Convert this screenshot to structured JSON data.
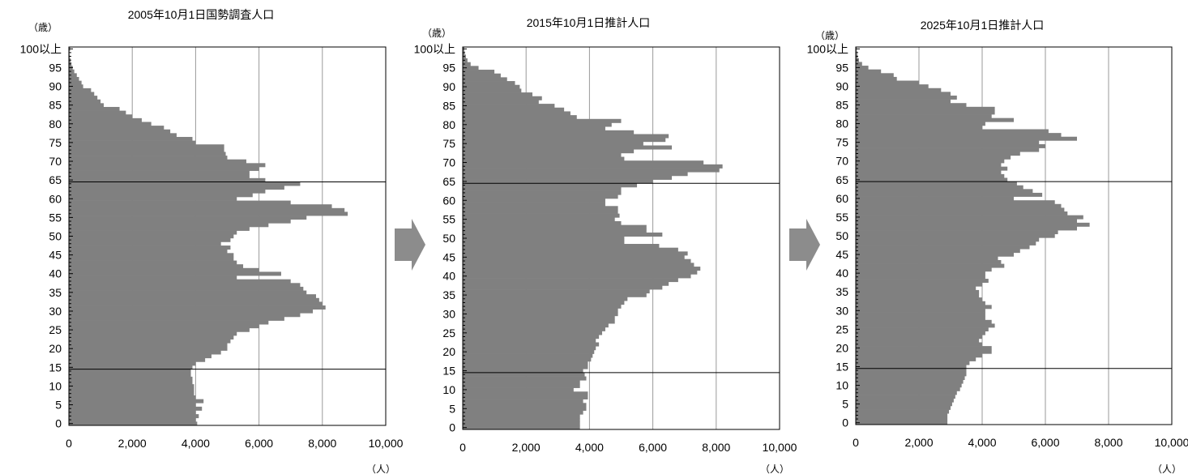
{
  "chart_data": [
    {
      "type": "bar",
      "orientation": "horizontal",
      "title": "2005年10月1日国勢調査人口",
      "y_unit_label": "（歳）",
      "x_unit_label": "（人）",
      "xlim": [
        0,
        10000
      ],
      "ylim": [
        0,
        100
      ],
      "x_ticks": [
        "0",
        "2,000",
        "4,000",
        "6,000",
        "8,000",
        "10,000"
      ],
      "y_ticks": [
        "0",
        "5",
        "10",
        "15",
        "20",
        "25",
        "30",
        "35",
        "40",
        "45",
        "50",
        "55",
        "60",
        "65",
        "70",
        "75",
        "80",
        "85",
        "90",
        "95",
        "100以上"
      ],
      "reference_lines_age": [
        15,
        65
      ],
      "grid": true,
      "bar_color": "#808080",
      "categories": [
        "0",
        "1",
        "2",
        "3",
        "4",
        "5",
        "6",
        "7",
        "8",
        "9",
        "10",
        "11",
        "12",
        "13",
        "14",
        "15",
        "16",
        "17",
        "18",
        "19",
        "20",
        "21",
        "22",
        "23",
        "24",
        "25",
        "26",
        "27",
        "28",
        "29",
        "30",
        "31",
        "32",
        "33",
        "34",
        "35",
        "36",
        "37",
        "38",
        "39",
        "40",
        "41",
        "42",
        "43",
        "44",
        "45",
        "46",
        "47",
        "48",
        "49",
        "50",
        "51",
        "52",
        "53",
        "54",
        "55",
        "56",
        "57",
        "58",
        "59",
        "60",
        "61",
        "62",
        "63",
        "64",
        "65",
        "66",
        "67",
        "68",
        "69",
        "70",
        "71",
        "72",
        "73",
        "74",
        "75",
        "76",
        "77",
        "78",
        "79",
        "80",
        "81",
        "82",
        "83",
        "84",
        "85",
        "86",
        "87",
        "88",
        "89",
        "90",
        "91",
        "92",
        "93",
        "94",
        "95",
        "96",
        "97",
        "98",
        "99",
        "100以上"
      ],
      "values": [
        4050,
        4000,
        4100,
        4000,
        4200,
        4000,
        4250,
        4000,
        3950,
        3950,
        3950,
        3900,
        3900,
        3850,
        3850,
        3900,
        4000,
        4300,
        4500,
        4800,
        5000,
        5000,
        5100,
        5200,
        5300,
        5700,
        6000,
        6300,
        6800,
        7300,
        7700,
        8100,
        8000,
        7900,
        7800,
        7500,
        7400,
        7300,
        7000,
        5300,
        6700,
        6000,
        5500,
        5300,
        5200,
        5200,
        5000,
        5100,
        4800,
        5100,
        5200,
        5300,
        5700,
        6300,
        7000,
        7500,
        8800,
        8700,
        8300,
        7000,
        5300,
        5800,
        6200,
        6800,
        7300,
        6200,
        5700,
        5700,
        6000,
        6200,
        5600,
        5000,
        4950,
        4900,
        4900,
        4000,
        3900,
        3400,
        3200,
        3000,
        2600,
        2300,
        2000,
        1800,
        1600,
        1100,
        1000,
        900,
        800,
        700,
        450,
        400,
        320,
        250,
        170,
        120,
        80,
        50,
        30,
        20,
        40
      ]
    },
    {
      "type": "bar",
      "orientation": "horizontal",
      "title": "2015年10月1日推計人口",
      "y_unit_label": "（歳）",
      "x_unit_label": "（人）",
      "xlim": [
        0,
        10000
      ],
      "ylim": [
        0,
        100
      ],
      "x_ticks": [
        "0",
        "2,000",
        "4,000",
        "6,000",
        "8,000",
        "10,000"
      ],
      "y_ticks": [
        "0",
        "5",
        "10",
        "15",
        "20",
        "25",
        "30",
        "35",
        "40",
        "45",
        "50",
        "55",
        "60",
        "65",
        "70",
        "75",
        "80",
        "85",
        "90",
        "95",
        "100以上"
      ],
      "reference_lines_age": [
        15,
        65
      ],
      "grid": true,
      "bar_color": "#808080",
      "categories": [
        "0",
        "1",
        "2",
        "3",
        "4",
        "5",
        "6",
        "7",
        "8",
        "9",
        "10",
        "11",
        "12",
        "13",
        "14",
        "15",
        "16",
        "17",
        "18",
        "19",
        "20",
        "21",
        "22",
        "23",
        "24",
        "25",
        "26",
        "27",
        "28",
        "29",
        "30",
        "31",
        "32",
        "33",
        "34",
        "35",
        "36",
        "37",
        "38",
        "39",
        "40",
        "41",
        "42",
        "43",
        "44",
        "45",
        "46",
        "47",
        "48",
        "49",
        "50",
        "51",
        "52",
        "53",
        "54",
        "55",
        "56",
        "57",
        "58",
        "59",
        "60",
        "61",
        "62",
        "63",
        "64",
        "65",
        "66",
        "67",
        "68",
        "69",
        "70",
        "71",
        "72",
        "73",
        "74",
        "75",
        "76",
        "77",
        "78",
        "79",
        "80",
        "81",
        "82",
        "83",
        "84",
        "85",
        "86",
        "87",
        "88",
        "89",
        "90",
        "91",
        "92",
        "93",
        "94",
        "95",
        "96",
        "97",
        "98",
        "99",
        "100以上"
      ],
      "values": [
        3700,
        3700,
        3700,
        3700,
        3800,
        3900,
        3900,
        3800,
        3950,
        3950,
        3500,
        3700,
        3700,
        3900,
        3850,
        3800,
        3950,
        3950,
        4050,
        4100,
        4150,
        4200,
        4300,
        4200,
        4300,
        4400,
        4500,
        4600,
        4800,
        4800,
        4900,
        4900,
        5000,
        5100,
        5200,
        5800,
        5900,
        6300,
        6500,
        6800,
        7200,
        7400,
        7500,
        7300,
        7200,
        7000,
        7100,
        6800,
        6200,
        5100,
        5100,
        6300,
        5800,
        5800,
        5000,
        4800,
        4950,
        4900,
        4900,
        4500,
        4500,
        4900,
        5000,
        5000,
        5500,
        6000,
        6600,
        7100,
        8100,
        8200,
        7600,
        5100,
        5000,
        5400,
        6600,
        5700,
        6400,
        6500,
        5400,
        4500,
        4700,
        5000,
        3600,
        3400,
        3200,
        2900,
        2400,
        2500,
        2200,
        1850,
        1800,
        1650,
        1400,
        1200,
        1000,
        500,
        250,
        150,
        100,
        60,
        50
      ]
    },
    {
      "type": "bar",
      "orientation": "horizontal",
      "title": "2025年10月1日推計人口",
      "y_unit_label": "（歳）",
      "x_unit_label": "（人）",
      "xlim": [
        0,
        10000
      ],
      "ylim": [
        0,
        100
      ],
      "x_ticks": [
        "0",
        "2,000",
        "4,000",
        "6,000",
        "8,000",
        "10,000"
      ],
      "y_ticks": [
        "0",
        "5",
        "10",
        "15",
        "20",
        "25",
        "30",
        "35",
        "40",
        "45",
        "50",
        "55",
        "60",
        "65",
        "70",
        "75",
        "80",
        "85",
        "90",
        "95",
        "100以上"
      ],
      "reference_lines_age": [
        15,
        65
      ],
      "grid": true,
      "bar_color": "#808080",
      "categories": [
        "0",
        "1",
        "2",
        "3",
        "4",
        "5",
        "6",
        "7",
        "8",
        "9",
        "10",
        "11",
        "12",
        "13",
        "14",
        "15",
        "16",
        "17",
        "18",
        "19",
        "20",
        "21",
        "22",
        "23",
        "24",
        "25",
        "26",
        "27",
        "28",
        "29",
        "30",
        "31",
        "32",
        "33",
        "34",
        "35",
        "36",
        "37",
        "38",
        "39",
        "40",
        "41",
        "42",
        "43",
        "44",
        "45",
        "46",
        "47",
        "48",
        "49",
        "50",
        "51",
        "52",
        "53",
        "54",
        "55",
        "56",
        "57",
        "58",
        "59",
        "60",
        "61",
        "62",
        "63",
        "64",
        "65",
        "66",
        "67",
        "68",
        "69",
        "70",
        "71",
        "72",
        "73",
        "74",
        "75",
        "76",
        "77",
        "78",
        "79",
        "80",
        "81",
        "82",
        "83",
        "84",
        "85",
        "86",
        "87",
        "88",
        "89",
        "90",
        "91",
        "92",
        "93",
        "94",
        "95",
        "96",
        "97",
        "98",
        "99",
        "100以上"
      ],
      "values": [
        2900,
        2900,
        2900,
        2950,
        3000,
        3050,
        3100,
        3150,
        3200,
        3300,
        3350,
        3400,
        3450,
        3500,
        3500,
        3500,
        3600,
        3800,
        4000,
        4300,
        4300,
        4000,
        3900,
        4000,
        4100,
        4200,
        4400,
        4300,
        4100,
        4100,
        4100,
        4300,
        4100,
        4000,
        3900,
        3900,
        3800,
        4000,
        4200,
        4100,
        4100,
        4300,
        4700,
        4600,
        4500,
        5000,
        5200,
        5500,
        5700,
        5800,
        6300,
        6400,
        7000,
        7400,
        7000,
        7200,
        6700,
        6600,
        6500,
        6300,
        5000,
        5900,
        5600,
        5300,
        5100,
        4800,
        4700,
        4600,
        4800,
        4600,
        4700,
        4900,
        5200,
        5800,
        6000,
        5800,
        7000,
        6500,
        6100,
        4000,
        4100,
        5000,
        4300,
        4400,
        4400,
        3500,
        3000,
        3200,
        3000,
        2700,
        2300,
        2000,
        1300,
        1200,
        800,
        400,
        200,
        100,
        60,
        40,
        30
      ]
    }
  ]
}
